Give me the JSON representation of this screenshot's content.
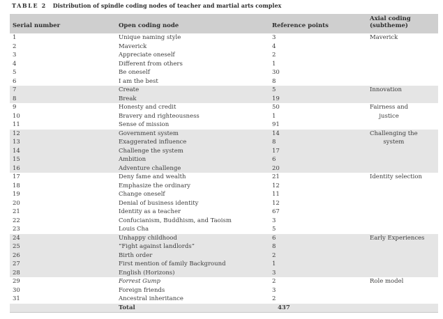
{
  "caption": {
    "label": "TABLE 2",
    "text": "Distribution of spindle coding nodes of teacher and martial arts complex"
  },
  "table": {
    "columns": [
      "Serial number",
      "Open coding node",
      "Reference points",
      "Axial coding\n(subtheme)"
    ],
    "groups": [
      {
        "axial": "Maverick",
        "shaded": false,
        "rows": [
          {
            "serial": "1",
            "node": "Unique naming style",
            "refs": "3"
          },
          {
            "serial": "2",
            "node": "Maverick",
            "refs": "4"
          },
          {
            "serial": "3",
            "node": "Appreciate oneself",
            "refs": "2"
          },
          {
            "serial": "4",
            "node": "Different from others",
            "refs": "1"
          },
          {
            "serial": "5",
            "node": "Be oneself",
            "refs": "30"
          },
          {
            "serial": "6",
            "node": "I am the best",
            "refs": "8"
          }
        ]
      },
      {
        "axial": "Innovation",
        "shaded": true,
        "rows": [
          {
            "serial": "7",
            "node": "Create",
            "refs": "5"
          },
          {
            "serial": "8",
            "node": "Break",
            "refs": "19"
          }
        ]
      },
      {
        "axial": "Fairness and\njustice",
        "shaded": false,
        "rows": [
          {
            "serial": "9",
            "node": "Honesty and credit",
            "refs": "50"
          },
          {
            "serial": "10",
            "node": "Bravery and righteousness",
            "refs": "1"
          },
          {
            "serial": "11",
            "node": "Sense of mission",
            "refs": "91"
          }
        ]
      },
      {
        "axial": "Challenging the\nsystem",
        "shaded": true,
        "rows": [
          {
            "serial": "12",
            "node": "Government system",
            "refs": "14"
          },
          {
            "serial": "13",
            "node": "Exaggerated influence",
            "refs": "8"
          },
          {
            "serial": "14",
            "node": "Challenge the system",
            "refs": "17"
          },
          {
            "serial": "15",
            "node": "Ambition",
            "refs": "6"
          },
          {
            "serial": "16",
            "node": "Adventure challenge",
            "refs": "20"
          }
        ]
      },
      {
        "axial": "Identity selection",
        "shaded": false,
        "rows": [
          {
            "serial": "17",
            "node": "Deny fame and wealth",
            "refs": "21"
          },
          {
            "serial": "18",
            "node": "Emphasize the ordinary",
            "refs": "12"
          },
          {
            "serial": "19",
            "node": "Change oneself",
            "refs": "11"
          },
          {
            "serial": "20",
            "node": "Denial of business identity",
            "refs": "12"
          },
          {
            "serial": "21",
            "node": "Identity as a teacher",
            "refs": "67"
          },
          {
            "serial": "22",
            "node": "Confucianism, Buddhism, and Taoism",
            "refs": "3"
          },
          {
            "serial": "23",
            "node": "Louis Cha",
            "refs": "5"
          }
        ]
      },
      {
        "axial": "Early Experiences",
        "shaded": true,
        "rows": [
          {
            "serial": "24",
            "node": "Unhappy childhood",
            "refs": "6"
          },
          {
            "serial": "25",
            "node": "“Fight against landlords”",
            "refs": "8"
          },
          {
            "serial": "26",
            "node": "Birth order",
            "refs": "2"
          },
          {
            "serial": "27",
            "node": "First mention of family Background",
            "refs": "1"
          },
          {
            "serial": "28",
            "node": "English (Horizons)",
            "refs": "3"
          }
        ]
      },
      {
        "axial": "Role model",
        "shaded": false,
        "rows": [
          {
            "serial": "29",
            "node": "Forrest Gump",
            "refs": "2",
            "italic": true
          },
          {
            "serial": "30",
            "node": "Foreign friends",
            "refs": "3"
          },
          {
            "serial": "31",
            "node": "Ancestral inheritance",
            "refs": "2"
          }
        ]
      }
    ],
    "total": {
      "label": "Total",
      "value": "437"
    },
    "colors": {
      "header_bg": "#cfcfcf",
      "shaded_row_bg": "#e5e5e5",
      "text": "#3d3d3d"
    }
  }
}
